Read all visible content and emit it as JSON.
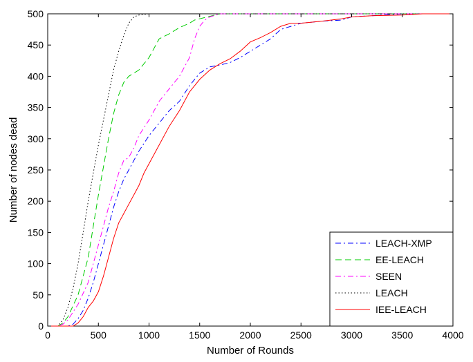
{
  "chart_data": {
    "type": "line",
    "xlabel": "Number of Rounds",
    "ylabel": "Number of nodes dead",
    "xlim": [
      0,
      4000
    ],
    "ylim": [
      0,
      500
    ],
    "xticks": [
      0,
      500,
      1000,
      1500,
      2000,
      2500,
      3000,
      3500,
      4000
    ],
    "yticks": [
      0,
      50,
      100,
      150,
      200,
      250,
      300,
      350,
      400,
      450,
      500
    ],
    "grid": false,
    "legend_position": "bottom-right",
    "series": [
      {
        "name": "LEACH-XMP",
        "color": "#0000ff",
        "dash": "dash-dot",
        "x": [
          0,
          200,
          250,
          300,
          350,
          400,
          450,
          500,
          550,
          600,
          650,
          700,
          750,
          800,
          850,
          900,
          1000,
          1100,
          1200,
          1300,
          1400,
          1500,
          1600,
          1700,
          1800,
          1900,
          2000,
          2100,
          2200,
          2300,
          2400,
          2500,
          2700,
          2900,
          3000,
          3200,
          3500,
          4000
        ],
        "y": [
          0,
          0,
          3,
          12,
          25,
          45,
          70,
          100,
          130,
          160,
          190,
          215,
          235,
          250,
          265,
          280,
          305,
          325,
          345,
          360,
          385,
          405,
          415,
          418,
          422,
          430,
          440,
          450,
          460,
          475,
          480,
          485,
          488,
          490,
          495,
          497,
          500,
          500
        ]
      },
      {
        "name": "EE-LEACH",
        "color": "#00cc00",
        "dash": "dash",
        "x": [
          0,
          100,
          150,
          200,
          300,
          400,
          450,
          500,
          550,
          600,
          650,
          700,
          750,
          800,
          850,
          900,
          1000,
          1100,
          1200,
          1300,
          1400,
          1450,
          1500,
          1550,
          1600,
          1700,
          2000,
          4000
        ],
        "y": [
          0,
          0,
          5,
          15,
          50,
          110,
          160,
          210,
          255,
          300,
          340,
          370,
          390,
          400,
          405,
          410,
          430,
          460,
          468,
          478,
          485,
          490,
          492,
          494,
          496,
          500,
          500,
          500
        ]
      },
      {
        "name": "SEEN",
        "color": "#ff00ff",
        "dash": "dash-dot",
        "x": [
          0,
          100,
          150,
          200,
          300,
          400,
          450,
          500,
          550,
          600,
          650,
          700,
          750,
          800,
          850,
          900,
          1000,
          1100,
          1200,
          1300,
          1350,
          1400,
          1450,
          1500,
          1550,
          1600,
          1700,
          2000,
          4000
        ],
        "y": [
          0,
          0,
          3,
          10,
          35,
          70,
          100,
          130,
          160,
          190,
          215,
          245,
          265,
          270,
          285,
          305,
          330,
          360,
          380,
          400,
          415,
          430,
          460,
          480,
          490,
          495,
          500,
          500,
          500
        ]
      },
      {
        "name": "LEACH",
        "color": "#000000",
        "dash": "dot",
        "x": [
          0,
          100,
          150,
          200,
          250,
          300,
          350,
          400,
          450,
          500,
          550,
          600,
          650,
          700,
          750,
          800,
          850,
          900,
          950,
          1000,
          1500,
          4000
        ],
        "y": [
          0,
          0,
          10,
          30,
          60,
          100,
          150,
          200,
          245,
          290,
          330,
          370,
          410,
          440,
          465,
          485,
          495,
          498,
          499,
          500,
          500,
          500
        ]
      },
      {
        "name": "IEE-LEACH",
        "color": "#ff0000",
        "dash": "solid",
        "x": [
          0,
          250,
          300,
          350,
          400,
          450,
          500,
          550,
          600,
          650,
          700,
          750,
          800,
          850,
          900,
          950,
          1000,
          1100,
          1200,
          1300,
          1400,
          1500,
          1600,
          1700,
          1800,
          1900,
          2000,
          2100,
          2200,
          2300,
          2400,
          2500,
          2700,
          2900,
          3000,
          3200,
          3500,
          3700,
          4000
        ],
        "y": [
          0,
          0,
          5,
          15,
          30,
          40,
          55,
          80,
          110,
          140,
          165,
          180,
          195,
          210,
          225,
          245,
          260,
          290,
          320,
          345,
          375,
          395,
          410,
          420,
          428,
          440,
          455,
          462,
          470,
          480,
          485,
          485,
          488,
          492,
          495,
          497,
          498,
          500,
          500
        ]
      }
    ]
  }
}
